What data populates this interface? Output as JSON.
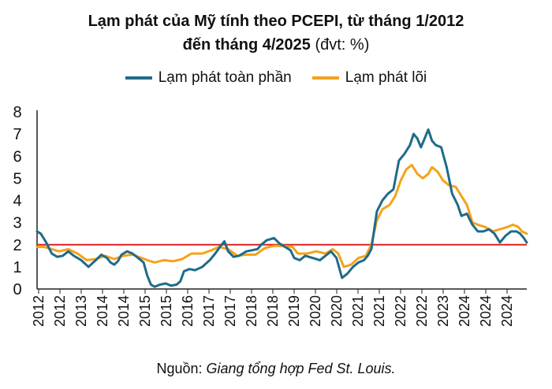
{
  "title_line1": "Lạm phát của Mỹ tính theo PCEPI, từ tháng 1/2012",
  "title_line2": "đến tháng 4/2025",
  "title_unit": "(đvt: %)",
  "source_label": "Nguồn:",
  "source_text": "Giang tổng hợp Fed St. Louis.",
  "colors": {
    "headline": "#1f6b8a",
    "core": "#f5a21b",
    "target": "#e02020",
    "axis": "#222222"
  },
  "chart_data": {
    "type": "line",
    "xlabel": "",
    "ylabel": "",
    "ylim": [
      0,
      8
    ],
    "yticks": [
      0,
      1,
      2,
      3,
      4,
      5,
      6,
      7,
      8
    ],
    "xlim": [
      2012.0,
      2025.33
    ],
    "xtick_labels": [
      "2012",
      "2012",
      "2013",
      "2014",
      "2014",
      "2015",
      "2015",
      "2016",
      "2017",
      "2017",
      "2018",
      "2018",
      "2019",
      "2020",
      "2020",
      "2021",
      "2021",
      "2022",
      "2022",
      "2023",
      "2024",
      "2024",
      "2024"
    ],
    "legend_position": "top-center",
    "grid": false,
    "reference_line": {
      "y": 2
    },
    "series": [
      {
        "name": "Lạm phát toàn phần",
        "color": "#1f6b8a",
        "points": [
          [
            2012.0,
            2.6
          ],
          [
            2012.1,
            2.5
          ],
          [
            2012.25,
            2.1
          ],
          [
            2012.4,
            1.6
          ],
          [
            2012.55,
            1.45
          ],
          [
            2012.7,
            1.5
          ],
          [
            2012.85,
            1.7
          ],
          [
            2013.0,
            1.5
          ],
          [
            2013.2,
            1.3
          ],
          [
            2013.4,
            1.0
          ],
          [
            2013.6,
            1.3
          ],
          [
            2013.75,
            1.55
          ],
          [
            2013.9,
            1.4
          ],
          [
            2014.0,
            1.2
          ],
          [
            2014.1,
            1.1
          ],
          [
            2014.2,
            1.25
          ],
          [
            2014.3,
            1.55
          ],
          [
            2014.45,
            1.7
          ],
          [
            2014.6,
            1.6
          ],
          [
            2014.75,
            1.4
          ],
          [
            2014.9,
            1.2
          ],
          [
            2015.0,
            0.6
          ],
          [
            2015.1,
            0.2
          ],
          [
            2015.2,
            0.1
          ],
          [
            2015.35,
            0.2
          ],
          [
            2015.5,
            0.25
          ],
          [
            2015.65,
            0.15
          ],
          [
            2015.8,
            0.2
          ],
          [
            2015.9,
            0.35
          ],
          [
            2016.0,
            0.8
          ],
          [
            2016.15,
            0.9
          ],
          [
            2016.3,
            0.85
          ],
          [
            2016.5,
            1.0
          ],
          [
            2016.7,
            1.3
          ],
          [
            2016.85,
            1.6
          ],
          [
            2017.0,
            1.95
          ],
          [
            2017.1,
            2.15
          ],
          [
            2017.2,
            1.7
          ],
          [
            2017.35,
            1.45
          ],
          [
            2017.5,
            1.5
          ],
          [
            2017.7,
            1.7
          ],
          [
            2017.85,
            1.75
          ],
          [
            2018.0,
            1.8
          ],
          [
            2018.1,
            2.0
          ],
          [
            2018.25,
            2.2
          ],
          [
            2018.45,
            2.3
          ],
          [
            2018.6,
            2.05
          ],
          [
            2018.75,
            1.9
          ],
          [
            2018.9,
            1.75
          ],
          [
            2019.0,
            1.4
          ],
          [
            2019.15,
            1.3
          ],
          [
            2019.3,
            1.5
          ],
          [
            2019.5,
            1.4
          ],
          [
            2019.7,
            1.3
          ],
          [
            2019.85,
            1.5
          ],
          [
            2020.0,
            1.7
          ],
          [
            2020.15,
            1.4
          ],
          [
            2020.3,
            0.5
          ],
          [
            2020.45,
            0.7
          ],
          [
            2020.6,
            1.0
          ],
          [
            2020.75,
            1.2
          ],
          [
            2020.9,
            1.3
          ],
          [
            2021.0,
            1.5
          ],
          [
            2021.1,
            1.8
          ],
          [
            2021.25,
            3.5
          ],
          [
            2021.4,
            4.0
          ],
          [
            2021.55,
            4.3
          ],
          [
            2021.7,
            4.5
          ],
          [
            2021.85,
            5.8
          ],
          [
            2022.0,
            6.1
          ],
          [
            2022.15,
            6.5
          ],
          [
            2022.25,
            7.0
          ],
          [
            2022.35,
            6.8
          ],
          [
            2022.45,
            6.4
          ],
          [
            2022.55,
            6.8
          ],
          [
            2022.65,
            7.2
          ],
          [
            2022.75,
            6.7
          ],
          [
            2022.85,
            6.5
          ],
          [
            2023.0,
            6.4
          ],
          [
            2023.15,
            5.5
          ],
          [
            2023.3,
            4.3
          ],
          [
            2023.45,
            3.8
          ],
          [
            2023.55,
            3.3
          ],
          [
            2023.7,
            3.4
          ],
          [
            2023.85,
            2.9
          ],
          [
            2024.0,
            2.6
          ],
          [
            2024.15,
            2.6
          ],
          [
            2024.3,
            2.7
          ],
          [
            2024.45,
            2.5
          ],
          [
            2024.6,
            2.1
          ],
          [
            2024.75,
            2.4
          ],
          [
            2024.9,
            2.6
          ],
          [
            2025.05,
            2.6
          ],
          [
            2025.15,
            2.5
          ],
          [
            2025.25,
            2.3
          ],
          [
            2025.33,
            2.1
          ]
        ]
      },
      {
        "name": "Lạm phát lõi",
        "color": "#f5a21b",
        "points": [
          [
            2012.0,
            1.9
          ],
          [
            2012.2,
            1.9
          ],
          [
            2012.4,
            1.8
          ],
          [
            2012.6,
            1.7
          ],
          [
            2012.85,
            1.8
          ],
          [
            2013.1,
            1.6
          ],
          [
            2013.35,
            1.3
          ],
          [
            2013.6,
            1.35
          ],
          [
            2013.85,
            1.5
          ],
          [
            2014.1,
            1.35
          ],
          [
            2014.35,
            1.5
          ],
          [
            2014.6,
            1.55
          ],
          [
            2014.85,
            1.4
          ],
          [
            2015.0,
            1.3
          ],
          [
            2015.2,
            1.2
          ],
          [
            2015.45,
            1.3
          ],
          [
            2015.7,
            1.25
          ],
          [
            2015.95,
            1.35
          ],
          [
            2016.2,
            1.6
          ],
          [
            2016.5,
            1.6
          ],
          [
            2016.75,
            1.75
          ],
          [
            2016.95,
            1.9
          ],
          [
            2017.2,
            1.8
          ],
          [
            2017.45,
            1.5
          ],
          [
            2017.7,
            1.55
          ],
          [
            2017.95,
            1.55
          ],
          [
            2018.2,
            1.85
          ],
          [
            2018.45,
            1.95
          ],
          [
            2018.7,
            1.95
          ],
          [
            2018.95,
            1.9
          ],
          [
            2019.1,
            1.6
          ],
          [
            2019.35,
            1.6
          ],
          [
            2019.6,
            1.7
          ],
          [
            2019.85,
            1.6
          ],
          [
            2020.05,
            1.8
          ],
          [
            2020.2,
            1.6
          ],
          [
            2020.35,
            1.0
          ],
          [
            2020.55,
            1.1
          ],
          [
            2020.75,
            1.4
          ],
          [
            2020.95,
            1.5
          ],
          [
            2021.1,
            2.0
          ],
          [
            2021.25,
            3.1
          ],
          [
            2021.4,
            3.6
          ],
          [
            2021.6,
            3.8
          ],
          [
            2021.75,
            4.2
          ],
          [
            2021.9,
            4.9
          ],
          [
            2022.05,
            5.4
          ],
          [
            2022.2,
            5.6
          ],
          [
            2022.35,
            5.2
          ],
          [
            2022.5,
            5.0
          ],
          [
            2022.65,
            5.2
          ],
          [
            2022.75,
            5.5
          ],
          [
            2022.9,
            5.3
          ],
          [
            2023.05,
            4.9
          ],
          [
            2023.2,
            4.7
          ],
          [
            2023.4,
            4.6
          ],
          [
            2023.55,
            4.2
          ],
          [
            2023.7,
            3.8
          ],
          [
            2023.85,
            3.0
          ],
          [
            2024.0,
            2.9
          ],
          [
            2024.2,
            2.8
          ],
          [
            2024.4,
            2.6
          ],
          [
            2024.6,
            2.7
          ],
          [
            2024.8,
            2.8
          ],
          [
            2024.95,
            2.9
          ],
          [
            2025.1,
            2.8
          ],
          [
            2025.2,
            2.6
          ],
          [
            2025.33,
            2.5
          ]
        ]
      }
    ]
  }
}
